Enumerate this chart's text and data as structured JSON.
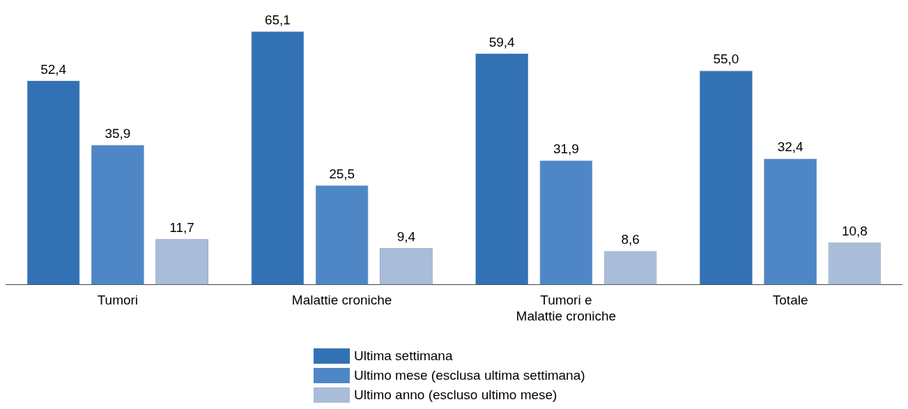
{
  "chart_data": {
    "type": "bar",
    "categories": [
      "Tumori",
      "Malattie croniche",
      "Tumori e\nMalattie croniche",
      "Totale"
    ],
    "series": [
      {
        "name": "Ultima settimana",
        "color": "#3371b5",
        "values": [
          52.4,
          65.1,
          59.4,
          55.0
        ],
        "value_labels": [
          "52,4",
          "65,1",
          "59,4",
          "55,0"
        ]
      },
      {
        "name": "Ultimo mese (esclusa ultima settimana)",
        "color": "#4f87c6",
        "values": [
          35.9,
          25.5,
          31.9,
          32.4
        ],
        "value_labels": [
          "35,9",
          "25,5",
          "31,9",
          "32,4"
        ]
      },
      {
        "name": "Ultimo anno (escluso ultimo mese)",
        "color": "#a9bcd8",
        "values": [
          11.7,
          9.4,
          8.6,
          10.8
        ],
        "value_labels": [
          "11,7",
          "9,4",
          "8,6",
          "10,8"
        ]
      }
    ],
    "legend": "bottom",
    "grid": false
  }
}
